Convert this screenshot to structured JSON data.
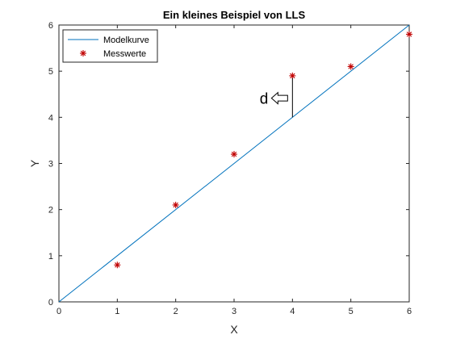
{
  "chart_data": {
    "type": "scatter",
    "title": "Ein kleines Beispiel von LLS",
    "xlabel": "X",
    "ylabel": "Y",
    "xlim": [
      0,
      6
    ],
    "ylim": [
      0,
      6
    ],
    "xticks": [
      "0",
      "1",
      "2",
      "3",
      "4",
      "5",
      "6"
    ],
    "yticks": [
      "0",
      "1",
      "2",
      "3",
      "4",
      "5",
      "6"
    ],
    "grid": false,
    "legend_position": "top-left",
    "series": [
      {
        "name": "Modelkurve",
        "kind": "line",
        "color": "#0072bd",
        "x": [
          0,
          6
        ],
        "y": [
          0,
          6
        ]
      },
      {
        "name": "Messwerte",
        "kind": "marker",
        "marker": "asterisk",
        "color": "#c00000",
        "x": [
          1,
          2,
          3,
          4,
          5,
          6
        ],
        "y": [
          0.8,
          2.1,
          3.2,
          4.9,
          5.1,
          5.8
        ]
      }
    ],
    "annotation": {
      "label": "d",
      "x": 4,
      "y_from": 4.0,
      "y_to": 4.9
    }
  }
}
